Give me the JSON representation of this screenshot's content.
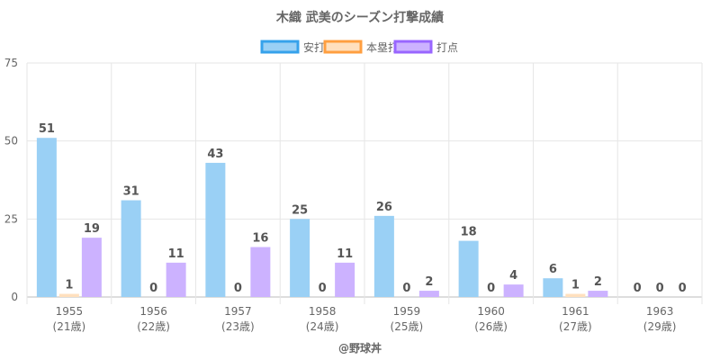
{
  "chart_data": {
    "type": "bar",
    "title": "木織 武美のシーズン打撃成績",
    "categories": [
      "1955",
      "1956",
      "1957",
      "1958",
      "1959",
      "1960",
      "1961",
      "1963"
    ],
    "category_sublabels": [
      "(21歳)",
      "(22歳)",
      "(23歳)",
      "(24歳)",
      "(25歳)",
      "(26歳)",
      "(27歳)",
      "(29歳)"
    ],
    "series": [
      {
        "name": "安打",
        "values": [
          51,
          31,
          43,
          25,
          26,
          18,
          6,
          0
        ],
        "color": "#9ad0f5",
        "border": "#36a2eb"
      },
      {
        "name": "本塁打",
        "values": [
          1,
          0,
          0,
          0,
          0,
          0,
          1,
          0
        ],
        "color": "#ffe0be",
        "border": "#ff9f40"
      },
      {
        "name": "打点",
        "values": [
          19,
          11,
          16,
          11,
          2,
          4,
          2,
          0
        ],
        "color": "#ccb2ff",
        "border": "#9966ff"
      }
    ],
    "y_ticks": [
      0,
      25,
      50,
      75
    ],
    "ylim": [
      0,
      75
    ],
    "xlabel": "",
    "ylabel": "",
    "legend_position": "top",
    "grid": true
  },
  "footer": {
    "credit": "@野球丼"
  }
}
